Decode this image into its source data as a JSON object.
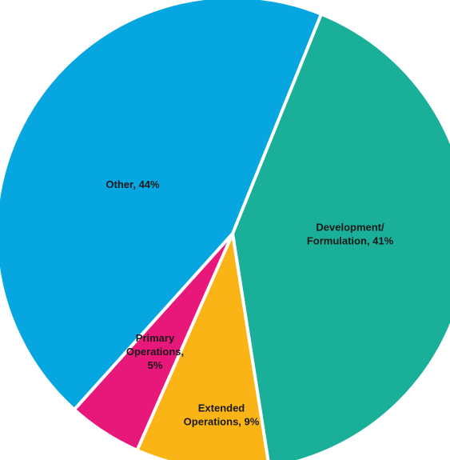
{
  "chart_data": {
    "type": "pie",
    "title": "",
    "slices": [
      {
        "label_lines": [
          "Development/",
          "Formulation, 41%"
        ],
        "value": 41,
        "color": "#1aaf98"
      },
      {
        "label_lines": [
          "Extended",
          "Operations, 9%"
        ],
        "value": 9,
        "color": "#fbb416"
      },
      {
        "label_lines": [
          "Primary",
          "Operations,",
          "5%"
        ],
        "value": 5,
        "color": "#e8177a"
      },
      {
        "label_lines": [
          "Other, 44%"
        ],
        "value": 44,
        "color": "#06a6e0"
      }
    ]
  }
}
